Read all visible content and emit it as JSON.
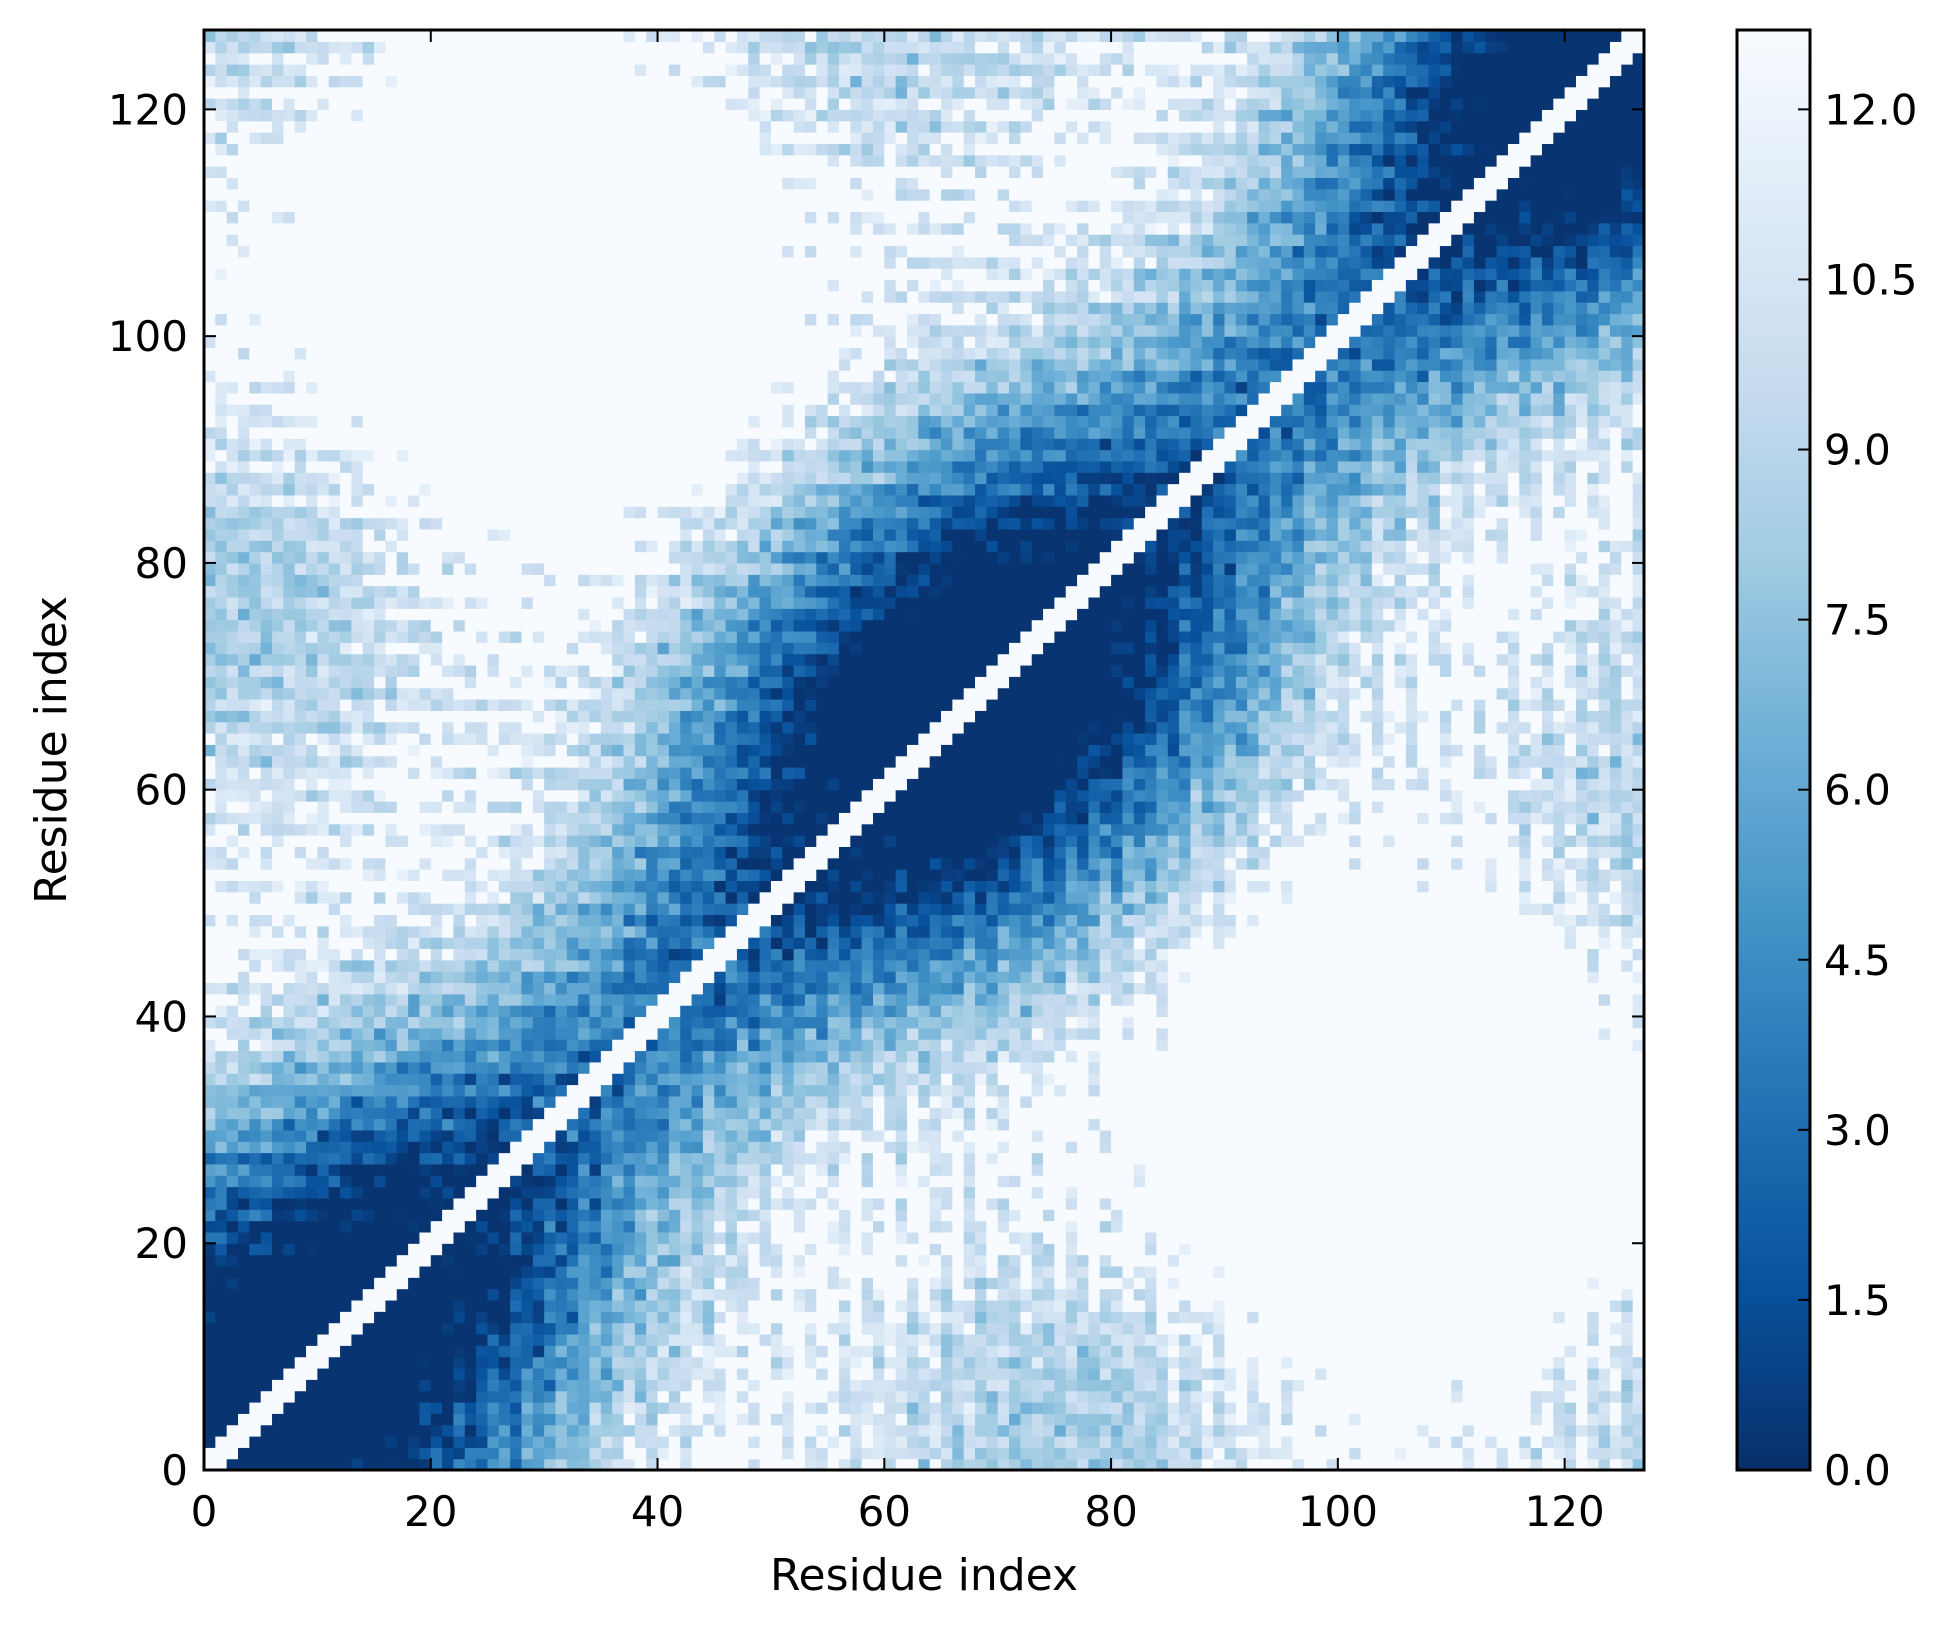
{
  "chart_data": {
    "type": "heatmap",
    "title": "",
    "xlabel": "Residue index",
    "ylabel": "Residue index",
    "xlim": [
      0,
      127
    ],
    "ylim": [
      0,
      127
    ],
    "x_ticks": [
      "0",
      "20",
      "40",
      "60",
      "80",
      "100",
      "120"
    ],
    "y_ticks": [
      "0",
      "20",
      "40",
      "60",
      "80",
      "100",
      "120"
    ],
    "colormap": "Blues_r",
    "color_range": [
      0.0,
      12.7
    ],
    "colorbar_ticks": [
      "0.0",
      "1.5",
      "3.0",
      "4.5",
      "6.0",
      "7.5",
      "9.0",
      "10.5",
      "12.0"
    ],
    "diagonal_value": 12.7,
    "matrix_size": 127,
    "grid": false,
    "colors": {
      "dark": "#08306b",
      "mid": "#4292c6",
      "light": "#c6dbef",
      "white": "#f7fbff"
    }
  }
}
